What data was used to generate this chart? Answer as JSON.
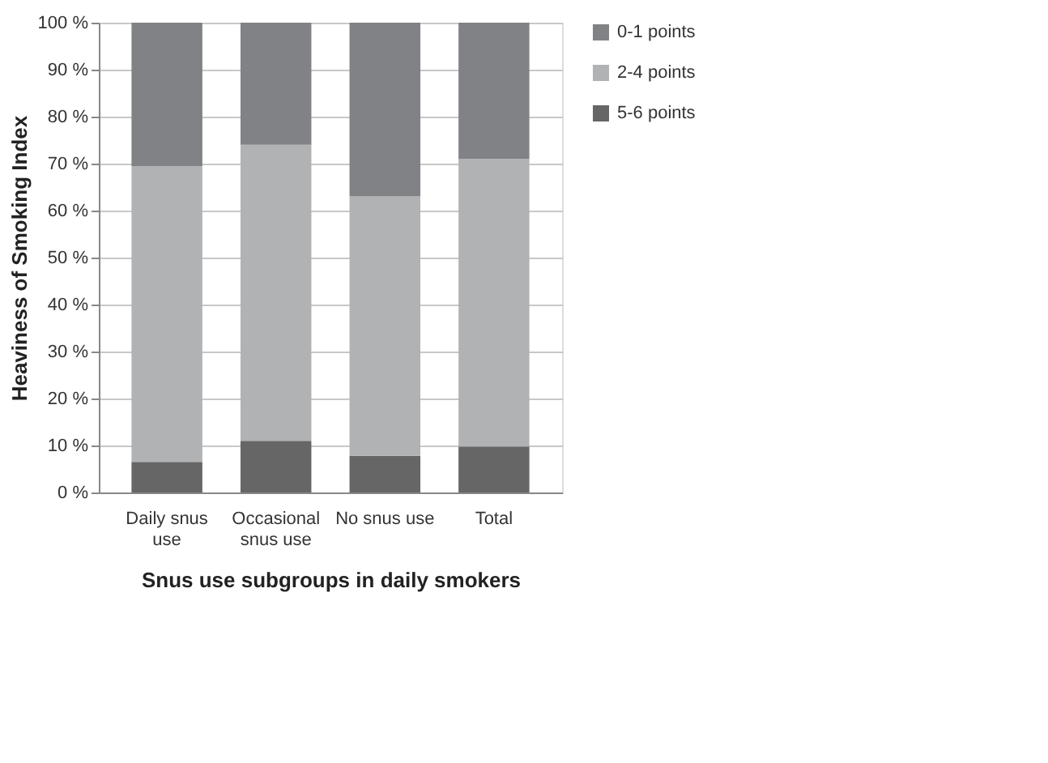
{
  "chart_data": {
    "type": "bar",
    "stacked": true,
    "xlabel": "Snus use subgroups in daily smokers",
    "ylabel": "Heaviness of Smoking Index",
    "categories": [
      "Daily snus use",
      "Occasional snus use",
      "No snus use",
      "Total"
    ],
    "series": [
      {
        "name": "5-6 points",
        "color": "#666666",
        "values": [
          6.5,
          11,
          7.8,
          9.8
        ]
      },
      {
        "name": "2-4 points",
        "color": "#b1b2b4",
        "values": [
          63,
          63,
          55.2,
          61.2
        ]
      },
      {
        "name": "0-1 points",
        "color": "#818285",
        "values": [
          30.5,
          26,
          37,
          29
        ]
      }
    ],
    "ylim": [
      0,
      100
    ],
    "yticks": [
      {
        "value": 0,
        "label": "0 %"
      },
      {
        "value": 10,
        "label": "10 %"
      },
      {
        "value": 20,
        "label": "20 %"
      },
      {
        "value": 30,
        "label": "30 %"
      },
      {
        "value": 40,
        "label": "40 %"
      },
      {
        "value": 50,
        "label": "50 %"
      },
      {
        "value": 60,
        "label": "60 %"
      },
      {
        "value": 70,
        "label": "70 %"
      },
      {
        "value": 80,
        "label": "80 %"
      },
      {
        "value": 90,
        "label": "90 %"
      },
      {
        "value": 100,
        "label": "100 %"
      }
    ],
    "grid": "y",
    "legend": "right"
  }
}
